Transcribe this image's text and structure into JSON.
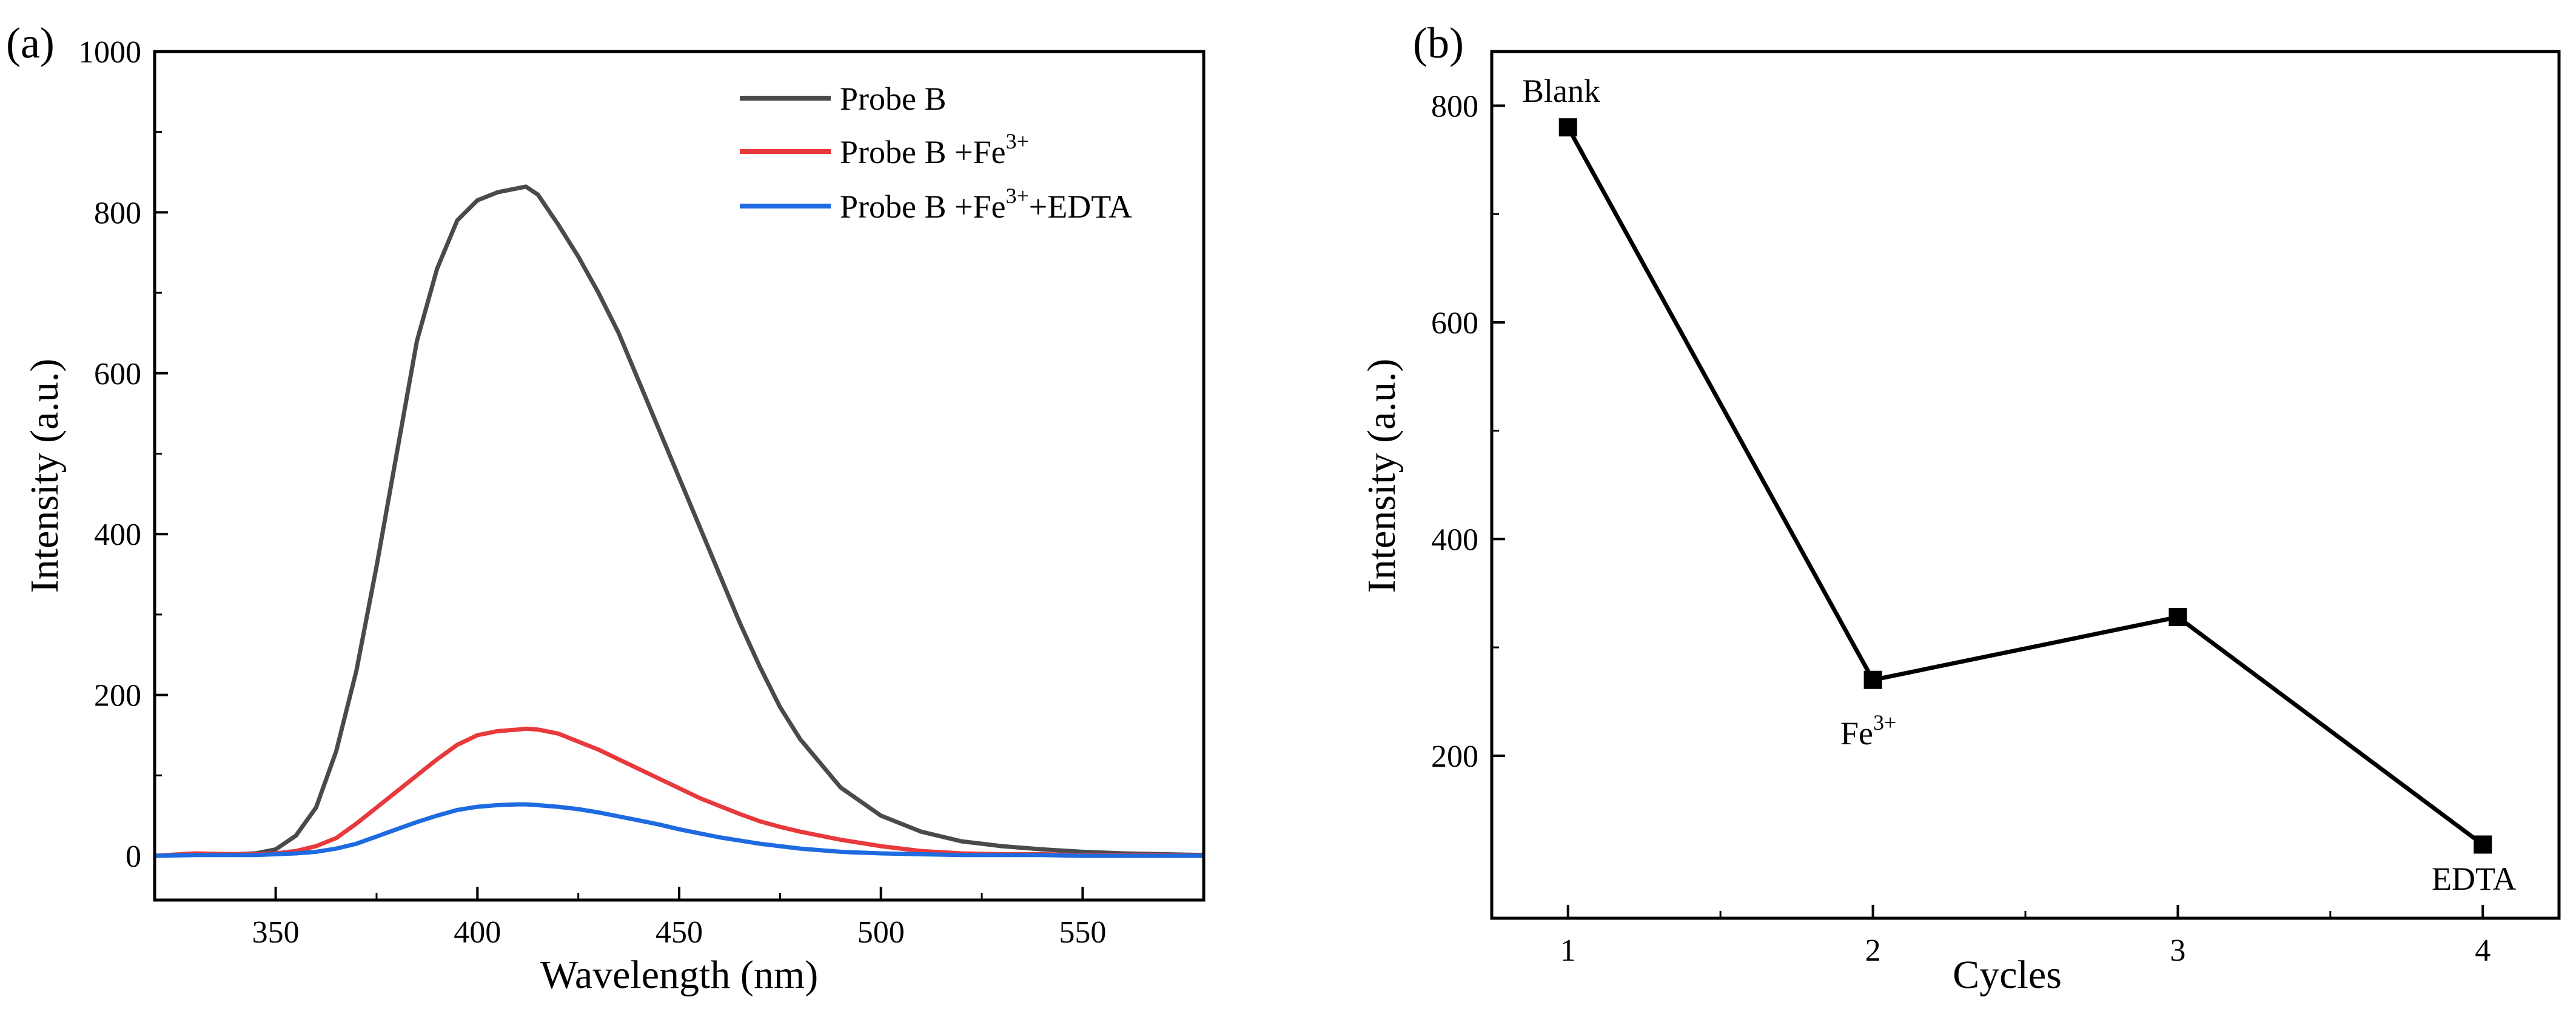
{
  "panel_a": {
    "label": "(a)",
    "legend": [
      {
        "text": "Probe B",
        "sup": "",
        "suffix": "",
        "color": "#4a4a4a"
      },
      {
        "text": "Probe B +Fe",
        "sup": "3+",
        "suffix": "",
        "color": "#e8393c"
      },
      {
        "text": "Probe B +Fe",
        "sup": "3+",
        "suffix": "+EDTA",
        "color": "#1e6ae0"
      }
    ]
  },
  "panel_b": {
    "label": "(b)",
    "annotations": [
      {
        "text": "Blank",
        "sup": ""
      },
      {
        "text": "Fe",
        "sup": "3+"
      },
      {
        "text": "EDTA",
        "sup": ""
      }
    ]
  },
  "chart_data": [
    {
      "type": "line",
      "title": "",
      "xlabel": "Wavelength (nm)",
      "ylabel": "Intensity (a.u.)",
      "xlim": [
        320,
        580
      ],
      "ylim": [
        -55,
        1000
      ],
      "xticks": [
        350,
        400,
        450,
        500,
        550
      ],
      "yticks": [
        0,
        200,
        400,
        600,
        800,
        1000
      ],
      "x": [
        320,
        330,
        340,
        345,
        350,
        355,
        360,
        365,
        370,
        375,
        380,
        385,
        390,
        395,
        400,
        405,
        410,
        412,
        415,
        420,
        425,
        430,
        435,
        440,
        445,
        450,
        455,
        460,
        465,
        470,
        475,
        480,
        490,
        500,
        510,
        520,
        530,
        540,
        550,
        560,
        570,
        580
      ],
      "series": [
        {
          "name": "Probe B",
          "color": "#4a4a4a",
          "values": [
            0,
            2,
            2,
            3,
            8,
            25,
            60,
            130,
            230,
            360,
            500,
            640,
            730,
            790,
            815,
            825,
            830,
            832,
            822,
            785,
            745,
            700,
            650,
            590,
            530,
            470,
            410,
            350,
            290,
            235,
            185,
            145,
            85,
            50,
            30,
            18,
            12,
            8,
            5,
            3,
            2,
            1
          ]
        },
        {
          "name": "Probe B +Fe3+",
          "color": "#e8393c",
          "values": [
            0,
            3,
            2,
            2,
            3,
            6,
            12,
            22,
            40,
            60,
            80,
            100,
            120,
            138,
            150,
            155,
            157,
            158,
            157,
            152,
            142,
            132,
            120,
            108,
            96,
            84,
            72,
            62,
            52,
            43,
            36,
            30,
            20,
            12,
            6,
            3,
            2,
            2,
            1,
            1,
            1,
            0
          ]
        },
        {
          "name": "Probe B +Fe3+ +EDTA",
          "color": "#1e6ae0",
          "values": [
            0,
            1,
            1,
            1,
            2,
            3,
            5,
            9,
            15,
            24,
            33,
            42,
            50,
            57,
            61,
            63,
            64,
            64,
            63,
            61,
            58,
            54,
            49,
            44,
            39,
            33,
            28,
            23,
            19,
            15,
            12,
            9,
            5,
            3,
            2,
            1,
            1,
            1,
            0,
            0,
            0,
            0
          ]
        }
      ]
    },
    {
      "type": "line",
      "title": "",
      "xlabel": "Cycles",
      "ylabel": "Intensity (a.u.)",
      "xlim": [
        0.75,
        4.25
      ],
      "ylim": [
        50,
        850
      ],
      "xticks": [
        1,
        2,
        3,
        4
      ],
      "yticks": [
        200,
        400,
        600,
        800
      ],
      "x": [
        1,
        2,
        3,
        4
      ],
      "series": [
        {
          "name": "Cycles",
          "color": "#000000",
          "values": [
            780,
            270,
            328,
            118
          ]
        }
      ]
    }
  ]
}
